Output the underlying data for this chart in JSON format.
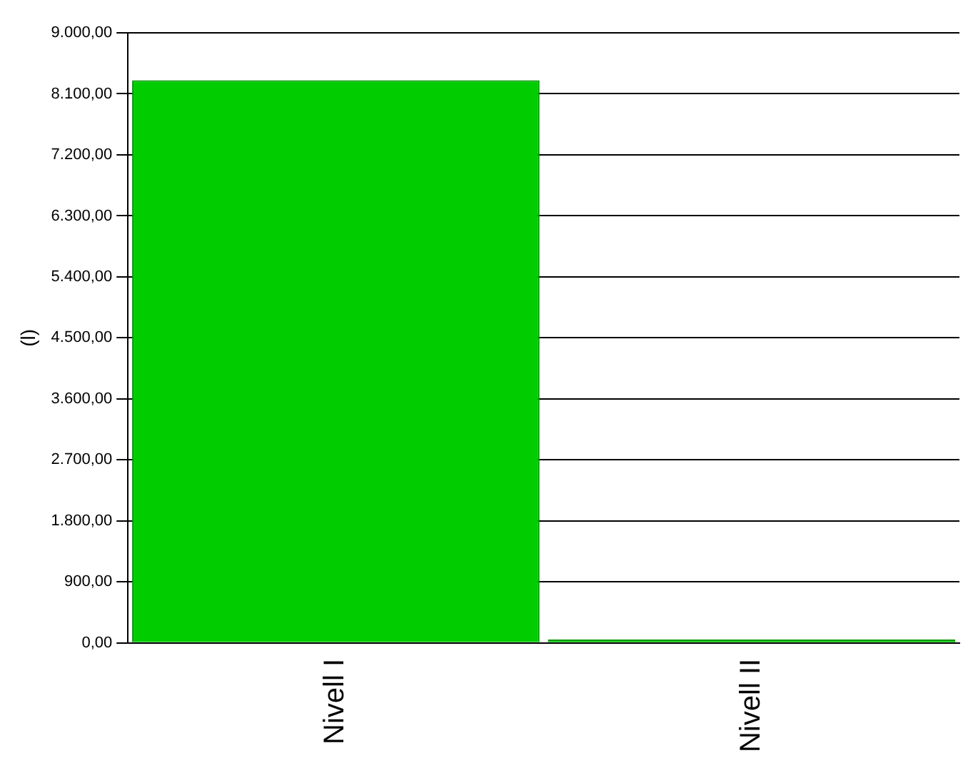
{
  "chart_data": {
    "type": "bar",
    "ylabel": "(l)",
    "categories": [
      "Nivell I",
      "Nivell II"
    ],
    "values": [
      8300,
      50
    ],
    "color": "#00cc00",
    "ylim": [
      0,
      9000
    ],
    "yticks": [
      {
        "value": 0,
        "label": "0,00"
      },
      {
        "value": 900,
        "label": "900,00"
      },
      {
        "value": 1800,
        "label": "1.800,00"
      },
      {
        "value": 2700,
        "label": "2.700,00"
      },
      {
        "value": 3600,
        "label": "3.600,00"
      },
      {
        "value": 4500,
        "label": "4.500,00"
      },
      {
        "value": 5400,
        "label": "5.400,00"
      },
      {
        "value": 6300,
        "label": "6.300,00"
      },
      {
        "value": 7200,
        "label": "7.200,00"
      },
      {
        "value": 8100,
        "label": "8.100,00"
      },
      {
        "value": 9000,
        "label": "9.000,00"
      }
    ],
    "grid": "y"
  }
}
